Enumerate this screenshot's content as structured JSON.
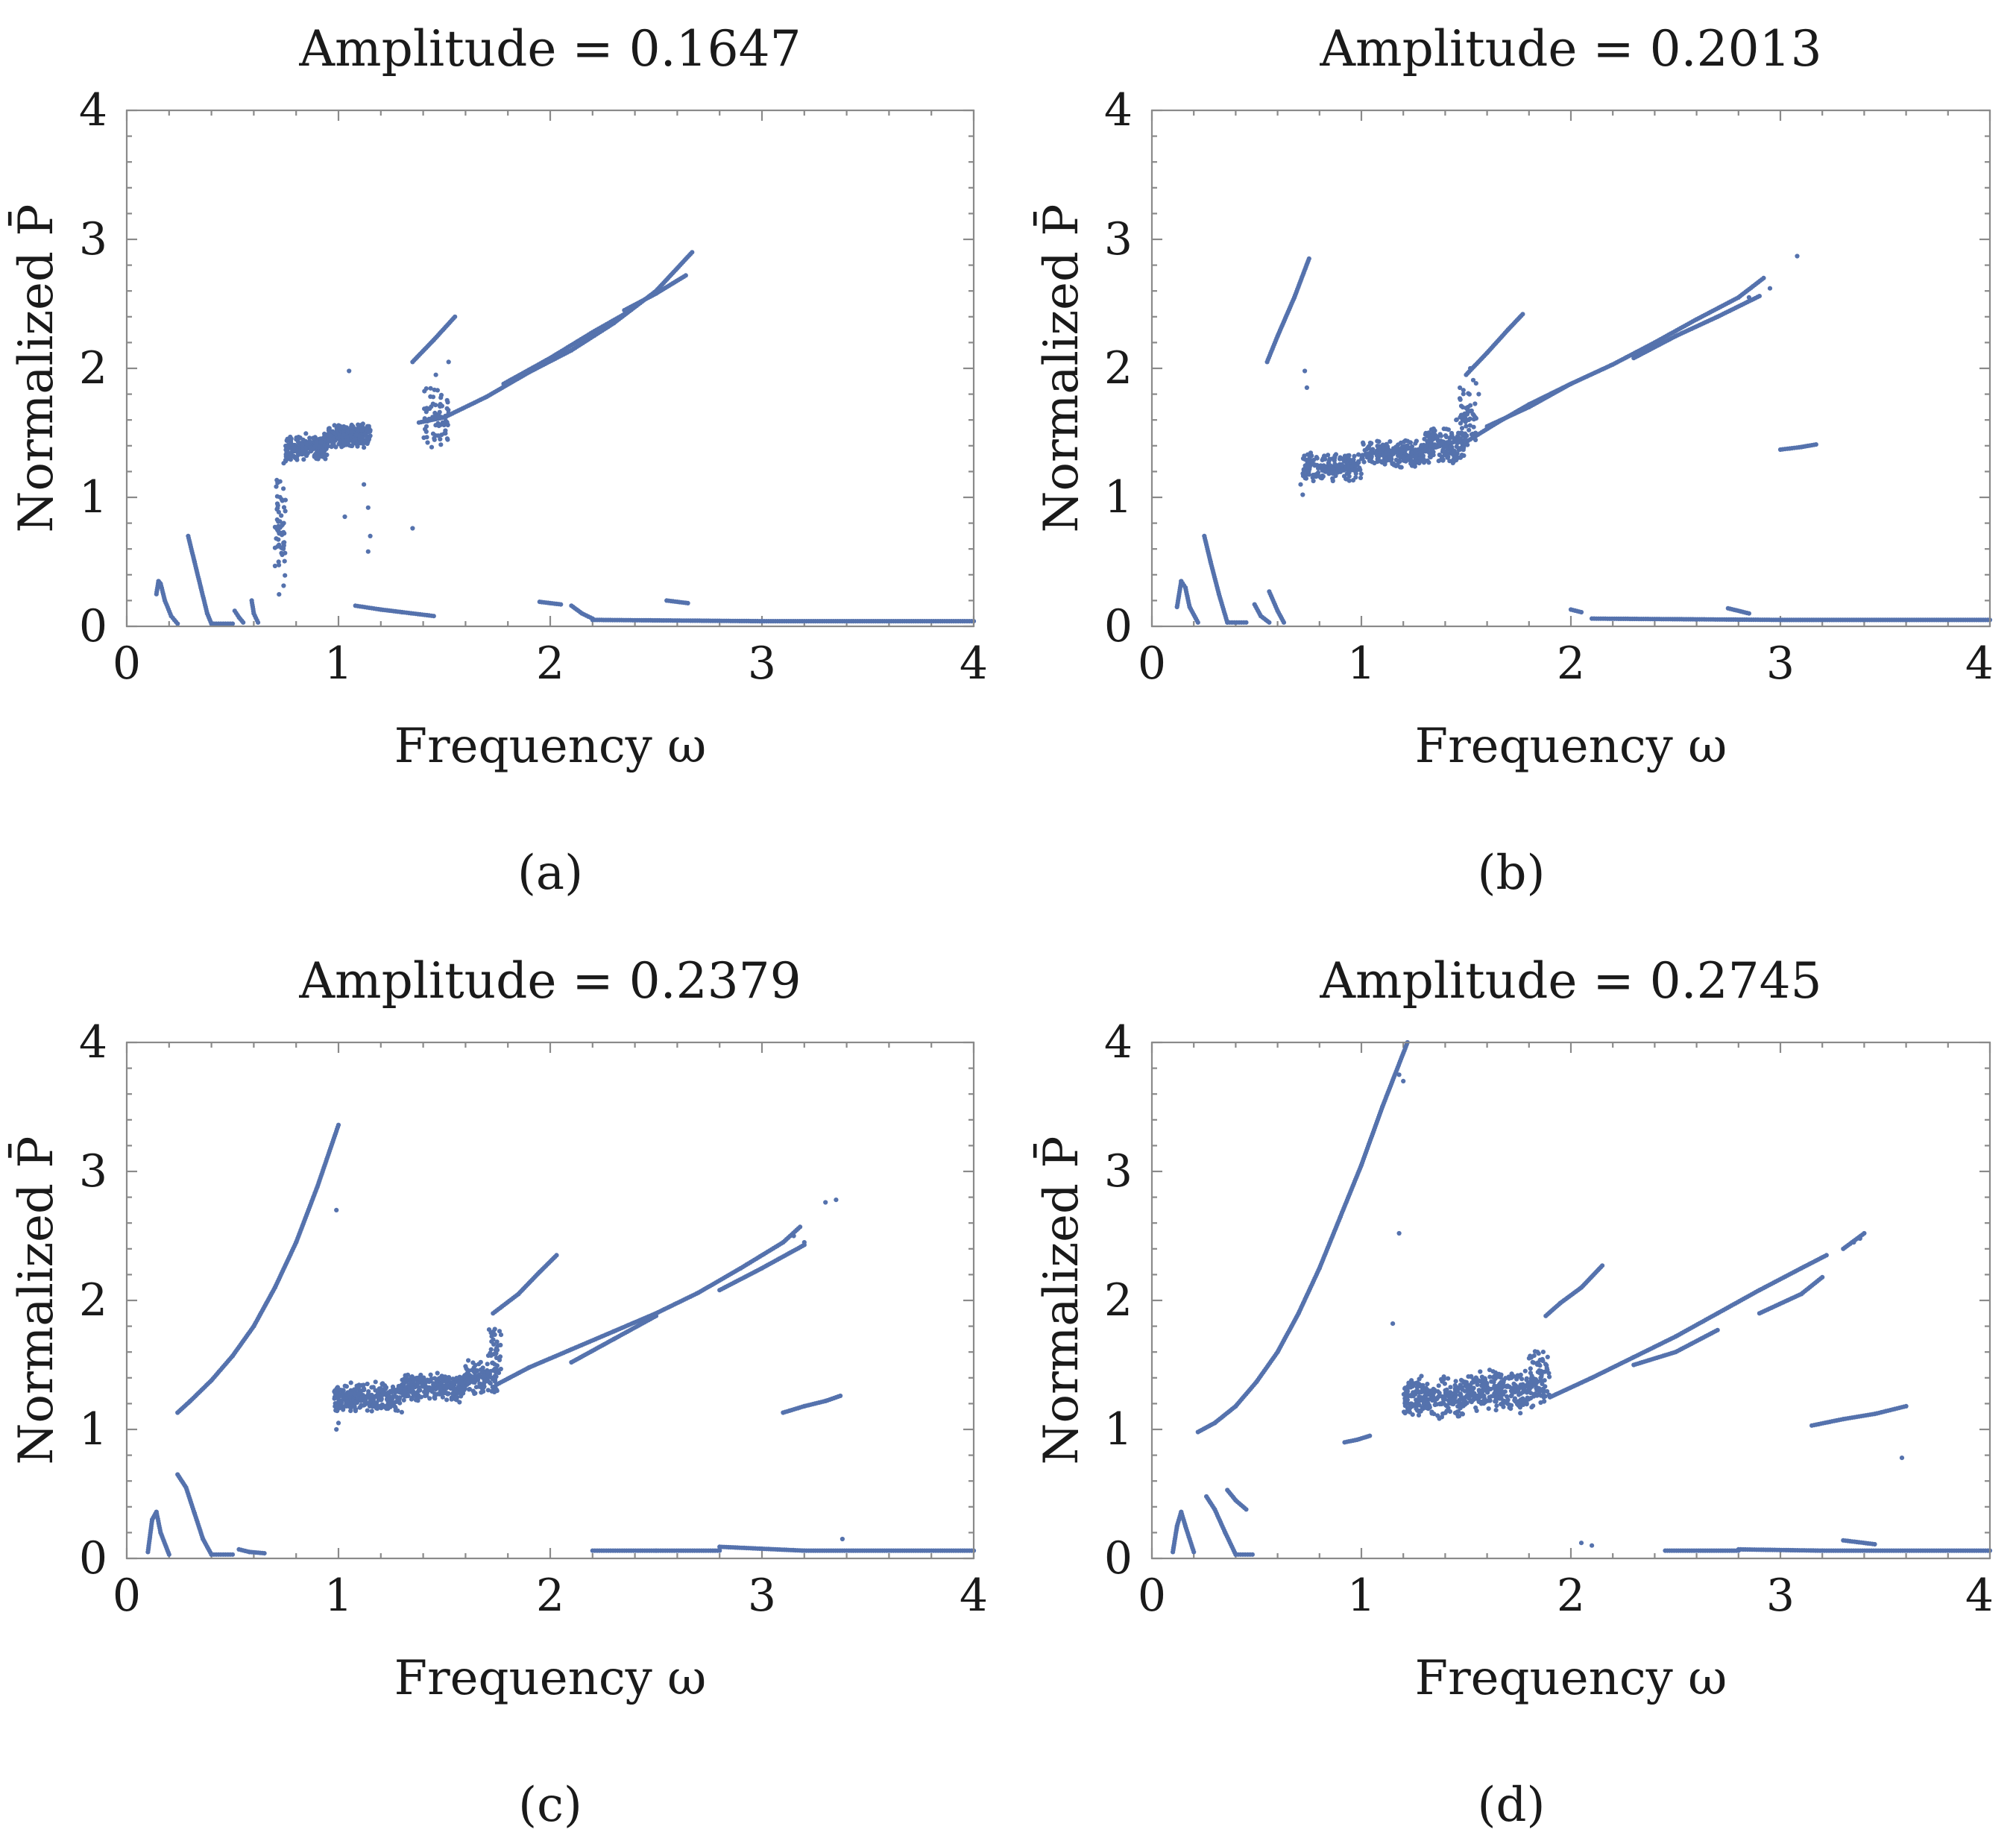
{
  "style": {
    "point_color": "#5572ad",
    "frame_color": "#8a8a8a"
  },
  "chart_data": [
    {
      "type": "scatter",
      "panel": "(a)",
      "title": "Amplitude = 0.1647",
      "xlabel": "Frequency ω",
      "ylabel": "Normalized P̄",
      "xlim": [
        0,
        4
      ],
      "ylim": [
        0,
        4
      ],
      "xticks": [
        "0",
        "1",
        "2",
        "3",
        "4"
      ],
      "yticks": [
        "0",
        "1",
        "2",
        "3",
        "4"
      ],
      "grid": false,
      "segments": [
        {
          "x": [
            0.14,
            0.15,
            0.16,
            0.18,
            0.21,
            0.24
          ],
          "y": [
            0.25,
            0.35,
            0.33,
            0.2,
            0.08,
            0.02
          ]
        },
        {
          "x": [
            0.29,
            0.32,
            0.35,
            0.38,
            0.4
          ],
          "y": [
            0.7,
            0.5,
            0.3,
            0.1,
            0.02
          ]
        },
        {
          "x": [
            0.4,
            0.5
          ],
          "y": [
            0.02,
            0.02
          ]
        },
        {
          "x": [
            0.51,
            0.53,
            0.55
          ],
          "y": [
            0.12,
            0.07,
            0.03
          ]
        },
        {
          "x": [
            0.59,
            0.6,
            0.62
          ],
          "y": [
            0.2,
            0.1,
            0.03
          ]
        },
        {
          "x": [
            0.75,
            0.78,
            0.85,
            0.95
          ],
          "y": [
            1.28,
            1.35,
            1.4,
            1.44
          ]
        },
        {
          "x": [
            0.95,
            1.05,
            1.15
          ],
          "y": [
            1.45,
            1.5,
            1.52
          ]
        },
        {
          "x": [
            1.08,
            1.2,
            1.3,
            1.45
          ],
          "y": [
            0.16,
            0.13,
            0.11,
            0.08
          ]
        },
        {
          "x": [
            1.35,
            1.45,
            1.55
          ],
          "y": [
            2.05,
            2.22,
            2.4
          ]
        },
        {
          "x": [
            1.38,
            1.5,
            1.7,
            1.9,
            2.1,
            2.3,
            2.5,
            2.67
          ],
          "y": [
            1.58,
            1.62,
            1.78,
            1.97,
            2.14,
            2.35,
            2.6,
            2.9
          ]
        },
        {
          "x": [
            1.78,
            2.0,
            2.2,
            2.35
          ],
          "y": [
            1.88,
            2.08,
            2.28,
            2.42
          ]
        },
        {
          "x": [
            2.35,
            2.5,
            2.64
          ],
          "y": [
            2.45,
            2.58,
            2.72
          ]
        },
        {
          "x": [
            1.95,
            2.05
          ],
          "y": [
            0.19,
            0.17
          ]
        },
        {
          "x": [
            2.1,
            2.15,
            2.2
          ],
          "y": [
            0.16,
            0.1,
            0.06
          ]
        },
        {
          "x": [
            2.2,
            3.0,
            4.0
          ],
          "y": [
            0.05,
            0.04,
            0.04
          ]
        },
        {
          "x": [
            2.55,
            2.65
          ],
          "y": [
            0.2,
            0.18
          ]
        }
      ],
      "clouds": [
        {
          "x": [
            0.7,
            0.75
          ],
          "y": [
            0.1,
            1.4
          ],
          "n": 60
        },
        {
          "x": [
            0.75,
            0.95
          ],
          "y": [
            1.28,
            1.5
          ],
          "n": 220
        },
        {
          "x": [
            0.95,
            1.15
          ],
          "y": [
            1.38,
            1.58
          ],
          "n": 240
        },
        {
          "x": [
            1.4,
            1.52
          ],
          "y": [
            1.35,
            1.9
          ],
          "n": 70
        }
      ],
      "points": [
        {
          "x": 1.05,
          "y": 1.98
        },
        {
          "x": 1.12,
          "y": 1.1
        },
        {
          "x": 1.14,
          "y": 0.92
        },
        {
          "x": 1.15,
          "y": 0.7
        },
        {
          "x": 1.14,
          "y": 0.58
        },
        {
          "x": 1.35,
          "y": 0.76
        },
        {
          "x": 1.52,
          "y": 2.05
        },
        {
          "x": 1.46,
          "y": 1.95
        },
        {
          "x": 1.03,
          "y": 0.85
        }
      ]
    },
    {
      "type": "scatter",
      "panel": "(b)",
      "title": "Amplitude = 0.2013",
      "xlabel": "Frequency ω",
      "ylabel": "Normalized P̄",
      "xlim": [
        0,
        4
      ],
      "ylim": [
        0,
        4
      ],
      "xticks": [
        "0",
        "1",
        "2",
        "3",
        "4"
      ],
      "yticks": [
        "0",
        "1",
        "2",
        "3",
        "4"
      ],
      "grid": false,
      "segments": [
        {
          "x": [
            0.12,
            0.14,
            0.16,
            0.18,
            0.22
          ],
          "y": [
            0.15,
            0.35,
            0.3,
            0.15,
            0.03
          ]
        },
        {
          "x": [
            0.25,
            0.28,
            0.32,
            0.36
          ],
          "y": [
            0.7,
            0.5,
            0.25,
            0.03
          ]
        },
        {
          "x": [
            0.36,
            0.45
          ],
          "y": [
            0.03,
            0.03
          ]
        },
        {
          "x": [
            0.49,
            0.52,
            0.56
          ],
          "y": [
            0.17,
            0.08,
            0.03
          ]
        },
        {
          "x": [
            0.56,
            0.6,
            0.63
          ],
          "y": [
            0.27,
            0.12,
            0.03
          ]
        },
        {
          "x": [
            0.55,
            0.6,
            0.68,
            0.75
          ],
          "y": [
            2.05,
            2.25,
            2.55,
            2.85
          ]
        },
        {
          "x": [
            1.5,
            1.6,
            1.7,
            1.77
          ],
          "y": [
            1.95,
            2.12,
            2.3,
            2.42
          ]
        },
        {
          "x": [
            1.5,
            1.65,
            1.8,
            2.0,
            2.2,
            2.4,
            2.6,
            2.8,
            2.92
          ],
          "y": [
            1.43,
            1.58,
            1.72,
            1.88,
            2.03,
            2.2,
            2.38,
            2.55,
            2.7
          ]
        },
        {
          "x": [
            1.6,
            1.8,
            2.0
          ],
          "y": [
            1.55,
            1.7,
            1.88
          ]
        },
        {
          "x": [
            2.3,
            2.5,
            2.7,
            2.9
          ],
          "y": [
            2.08,
            2.25,
            2.4,
            2.56
          ]
        },
        {
          "x": [
            3.0,
            3.1,
            3.17
          ],
          "y": [
            1.37,
            1.39,
            1.41
          ]
        },
        {
          "x": [
            2.0,
            2.05
          ],
          "y": [
            0.13,
            0.11
          ]
        },
        {
          "x": [
            2.1,
            3.0,
            4.0
          ],
          "y": [
            0.06,
            0.05,
            0.05
          ]
        },
        {
          "x": [
            2.75,
            2.85
          ],
          "y": [
            0.14,
            0.1
          ]
        }
      ],
      "clouds": [
        {
          "x": [
            0.72,
            1.0
          ],
          "y": [
            1.12,
            1.35
          ],
          "n": 200
        },
        {
          "x": [
            1.0,
            1.3
          ],
          "y": [
            1.22,
            1.45
          ],
          "n": 240
        },
        {
          "x": [
            1.3,
            1.5
          ],
          "y": [
            1.25,
            1.55
          ],
          "n": 170
        },
        {
          "x": [
            1.45,
            1.55
          ],
          "y": [
            1.3,
            1.95
          ],
          "n": 60
        }
      ],
      "points": [
        {
          "x": 0.73,
          "y": 1.98
        },
        {
          "x": 0.74,
          "y": 1.85
        },
        {
          "x": 0.72,
          "y": 1.02
        },
        {
          "x": 0.71,
          "y": 1.1
        },
        {
          "x": 3.08,
          "y": 2.87
        },
        {
          "x": 2.95,
          "y": 2.62
        },
        {
          "x": 2.85,
          "y": 2.55
        },
        {
          "x": 1.52,
          "y": 2.0
        },
        {
          "x": 1.56,
          "y": 1.8
        }
      ]
    },
    {
      "type": "scatter",
      "panel": "(c)",
      "title": "Amplitude = 0.2379",
      "xlabel": "Frequency ω",
      "ylabel": "Normalized P̄",
      "xlim": [
        0,
        4
      ],
      "ylim": [
        0,
        4
      ],
      "xticks": [
        "0",
        "1",
        "2",
        "3",
        "4"
      ],
      "yticks": [
        "0",
        "1",
        "2",
        "3",
        "4"
      ],
      "grid": false,
      "segments": [
        {
          "x": [
            0.1,
            0.12,
            0.14,
            0.16,
            0.2
          ],
          "y": [
            0.05,
            0.3,
            0.36,
            0.2,
            0.03
          ]
        },
        {
          "x": [
            0.24,
            0.28,
            0.32,
            0.36,
            0.4
          ],
          "y": [
            0.65,
            0.55,
            0.35,
            0.15,
            0.03
          ]
        },
        {
          "x": [
            0.4,
            0.5
          ],
          "y": [
            0.03,
            0.03
          ]
        },
        {
          "x": [
            0.53,
            0.58,
            0.65
          ],
          "y": [
            0.07,
            0.05,
            0.04
          ]
        },
        {
          "x": [
            0.24,
            0.3,
            0.4,
            0.5,
            0.6,
            0.7,
            0.8,
            0.9,
            1.0
          ],
          "y": [
            1.13,
            1.22,
            1.38,
            1.57,
            1.8,
            2.1,
            2.45,
            2.88,
            3.36
          ]
        },
        {
          "x": [
            1.73,
            1.85,
            1.95,
            2.03
          ],
          "y": [
            1.9,
            2.05,
            2.22,
            2.35
          ]
        },
        {
          "x": [
            1.75,
            1.9,
            2.1,
            2.3,
            2.5,
            2.7,
            2.9,
            3.1,
            3.18
          ],
          "y": [
            1.35,
            1.48,
            1.62,
            1.76,
            1.9,
            2.06,
            2.25,
            2.45,
            2.57
          ]
        },
        {
          "x": [
            2.1,
            2.3,
            2.5
          ],
          "y": [
            1.52,
            1.7,
            1.88
          ]
        },
        {
          "x": [
            2.8,
            3.0,
            3.2
          ],
          "y": [
            2.08,
            2.25,
            2.43
          ]
        },
        {
          "x": [
            3.1,
            3.2,
            3.3,
            3.37
          ],
          "y": [
            1.13,
            1.18,
            1.22,
            1.26
          ]
        },
        {
          "x": [
            2.2,
            2.5,
            2.8
          ],
          "y": [
            0.06,
            0.06,
            0.06
          ]
        },
        {
          "x": [
            2.8,
            3.2,
            4.0
          ],
          "y": [
            0.09,
            0.06,
            0.06
          ]
        }
      ],
      "clouds": [
        {
          "x": [
            0.98,
            1.3
          ],
          "y": [
            1.12,
            1.38
          ],
          "n": 260
        },
        {
          "x": [
            1.3,
            1.6
          ],
          "y": [
            1.2,
            1.45
          ],
          "n": 260
        },
        {
          "x": [
            1.6,
            1.75
          ],
          "y": [
            1.25,
            1.55
          ],
          "n": 120
        },
        {
          "x": [
            1.7,
            1.77
          ],
          "y": [
            1.3,
            1.8
          ],
          "n": 40
        }
      ],
      "points": [
        {
          "x": 0.99,
          "y": 2.7
        },
        {
          "x": 1.0,
          "y": 1.05
        },
        {
          "x": 0.99,
          "y": 1.0
        },
        {
          "x": 3.3,
          "y": 2.76
        },
        {
          "x": 3.35,
          "y": 2.78
        },
        {
          "x": 3.15,
          "y": 2.5
        },
        {
          "x": 3.2,
          "y": 2.45
        },
        {
          "x": 3.38,
          "y": 0.15
        },
        {
          "x": 1.72,
          "y": 1.75
        }
      ]
    },
    {
      "type": "scatter",
      "panel": "(d)",
      "title": "Amplitude = 0.2745",
      "xlabel": "Frequency ω",
      "ylabel": "Normalized P̄",
      "xlim": [
        0,
        4
      ],
      "ylim": [
        0,
        4
      ],
      "xticks": [
        "0",
        "1",
        "2",
        "3",
        "4"
      ],
      "yticks": [
        "0",
        "1",
        "2",
        "3",
        "4"
      ],
      "grid": false,
      "segments": [
        {
          "x": [
            0.1,
            0.12,
            0.14,
            0.16,
            0.2
          ],
          "y": [
            0.05,
            0.25,
            0.36,
            0.25,
            0.05
          ]
        },
        {
          "x": [
            0.26,
            0.3,
            0.35,
            0.4
          ],
          "y": [
            0.48,
            0.38,
            0.2,
            0.03
          ]
        },
        {
          "x": [
            0.4,
            0.48
          ],
          "y": [
            0.03,
            0.03
          ]
        },
        {
          "x": [
            0.36,
            0.4,
            0.45
          ],
          "y": [
            0.53,
            0.45,
            0.38
          ]
        },
        {
          "x": [
            0.22,
            0.3,
            0.4,
            0.5,
            0.6,
            0.7,
            0.8,
            0.9,
            1.0,
            1.1,
            1.22
          ],
          "y": [
            0.98,
            1.05,
            1.18,
            1.37,
            1.6,
            1.9,
            2.25,
            2.65,
            3.05,
            3.5,
            4.0
          ]
        },
        {
          "x": [
            0.92,
            0.98,
            1.04
          ],
          "y": [
            0.9,
            0.92,
            0.95
          ]
        },
        {
          "x": [
            1.88,
            1.95,
            2.05,
            2.15
          ],
          "y": [
            1.88,
            1.98,
            2.1,
            2.27
          ]
        },
        {
          "x": [
            1.9,
            2.1,
            2.3,
            2.5,
            2.7,
            2.9,
            3.1,
            3.22
          ],
          "y": [
            1.25,
            1.4,
            1.56,
            1.72,
            1.9,
            2.08,
            2.25,
            2.35
          ]
        },
        {
          "x": [
            2.3,
            2.5,
            2.7
          ],
          "y": [
            1.5,
            1.6,
            1.77
          ]
        },
        {
          "x": [
            2.9,
            3.1,
            3.2
          ],
          "y": [
            1.9,
            2.05,
            2.18
          ]
        },
        {
          "x": [
            3.3,
            3.4
          ],
          "y": [
            2.4,
            2.52
          ]
        },
        {
          "x": [
            3.15,
            3.3,
            3.45,
            3.6
          ],
          "y": [
            1.03,
            1.08,
            1.12,
            1.18
          ]
        },
        {
          "x": [
            2.45,
            2.8
          ],
          "y": [
            0.06,
            0.06
          ]
        },
        {
          "x": [
            2.8,
            3.2,
            4.0
          ],
          "y": [
            0.07,
            0.06,
            0.06
          ]
        },
        {
          "x": [
            3.3,
            3.45
          ],
          "y": [
            0.14,
            0.11
          ]
        }
      ],
      "clouds": [
        {
          "x": [
            1.2,
            1.5
          ],
          "y": [
            1.08,
            1.42
          ],
          "n": 260
        },
        {
          "x": [
            1.5,
            1.88
          ],
          "y": [
            1.12,
            1.48
          ],
          "n": 300
        },
        {
          "x": [
            1.8,
            1.9
          ],
          "y": [
            1.2,
            1.65
          ],
          "n": 50
        }
      ],
      "points": [
        {
          "x": 1.2,
          "y": 3.7
        },
        {
          "x": 1.18,
          "y": 3.75
        },
        {
          "x": 1.18,
          "y": 2.52
        },
        {
          "x": 1.15,
          "y": 1.82
        },
        {
          "x": 3.58,
          "y": 0.78
        },
        {
          "x": 3.35,
          "y": 2.45
        },
        {
          "x": 2.1,
          "y": 0.1
        },
        {
          "x": 2.05,
          "y": 0.12
        },
        {
          "x": 3.38,
          "y": 2.48
        }
      ]
    }
  ]
}
